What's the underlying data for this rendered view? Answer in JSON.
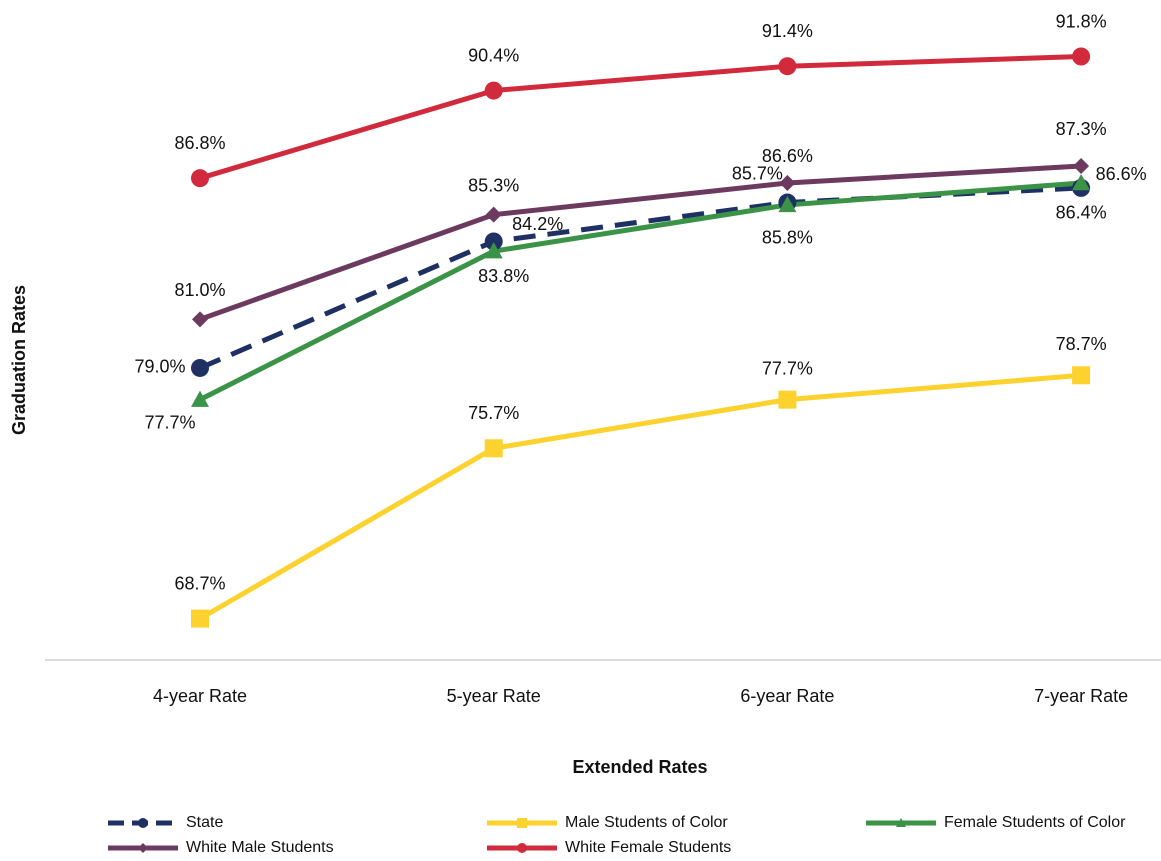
{
  "chart_data": {
    "type": "line",
    "x_label": "Extended Rates",
    "y_label": "Graduation Rates",
    "categories": [
      "4-year Rate",
      "5-year Rate",
      "6-year Rate",
      "7-year Rate"
    ],
    "ylim": [
      67,
      93.3
    ],
    "grid": false,
    "legend": "bottom",
    "series": [
      {
        "name": "State",
        "color": "#1f3064",
        "marker": "circle",
        "dash": true,
        "values": [
          79.0,
          84.2,
          85.8,
          86.4
        ],
        "value_labels": [
          "79.0%",
          "84.2%",
          "85.8%",
          "86.4%"
        ]
      },
      {
        "name": "Male Students of Color",
        "color": "#fdd12e",
        "marker": "square",
        "dash": false,
        "values": [
          68.7,
          75.7,
          77.7,
          78.7
        ],
        "value_labels": [
          "68.7%",
          "75.7%",
          "77.7%",
          "78.7%"
        ]
      },
      {
        "name": "Female Students of Color",
        "color": "#3a9346",
        "marker": "triangle",
        "dash": false,
        "values": [
          77.7,
          83.8,
          85.7,
          86.6
        ],
        "value_labels": [
          "77.7%",
          "83.8%",
          "85.7%",
          "86.6%"
        ]
      },
      {
        "name": "White Male Students",
        "color": "#6b3a5e",
        "marker": "diamond",
        "dash": false,
        "values": [
          81.0,
          85.3,
          86.6,
          87.3
        ],
        "value_labels": [
          "81.0%",
          "85.3%",
          "86.6%",
          "87.3%"
        ]
      },
      {
        "name": "White Female Students",
        "color": "#d12a3c",
        "marker": "circle",
        "dash": false,
        "values": [
          86.8,
          90.4,
          91.4,
          91.8
        ],
        "value_labels": [
          "86.8%",
          "90.4%",
          "91.4%",
          "91.8%"
        ]
      }
    ]
  }
}
